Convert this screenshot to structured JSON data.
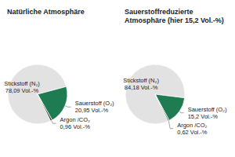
{
  "chart_data": [
    {
      "type": "pie",
      "title": "Natürliche Atmosphäre",
      "categories": [
        "Stickstoff (N₂)",
        "Sauerstoff (O₂)",
        "Argon /CO₂"
      ],
      "values": [
        78.09,
        20.95,
        0.96
      ],
      "value_labels": [
        "78,09 Vol.-%",
        "20,95 Vol.-%",
        "0,96 Vol.-%"
      ],
      "colors": [
        "#e2e2e2",
        "#1e7b52",
        "#3a3a3a"
      ],
      "data_labels": true
    },
    {
      "type": "pie",
      "title": "Sauerstoffreduzierte Atmosphäre (hier 15,2 Vol.-%)",
      "categories": [
        "Stickstoff (N₂)",
        "Sauerstoff (O₂)",
        "Argon /CO₂"
      ],
      "values": [
        84.18,
        15.2,
        0.62
      ],
      "value_labels": [
        "84,18 Vol.-%",
        "15,2 Vol.-%",
        "0,62 Vol.-%"
      ],
      "colors": [
        "#e2e2e2",
        "#1e7b52",
        "#3a3a3a"
      ],
      "data_labels": true
    }
  ]
}
